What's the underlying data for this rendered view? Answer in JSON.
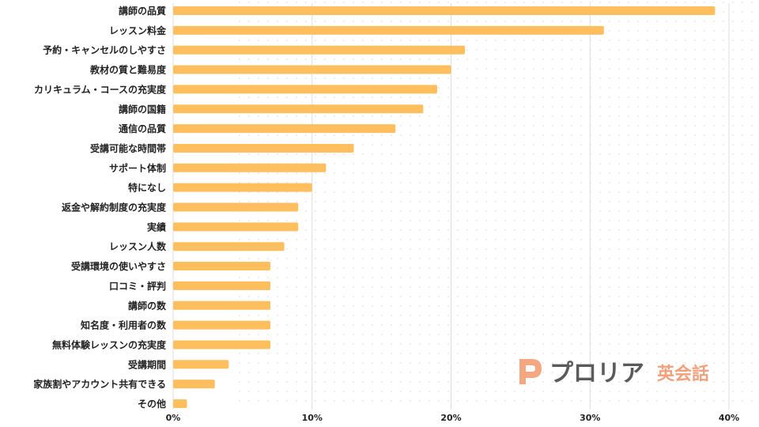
{
  "chart_data": {
    "type": "bar",
    "orientation": "horizontal",
    "categories": [
      "講師の品質",
      "レッスン料金",
      "予約・キャンセルのしやすさ",
      "教材の質と難易度",
      "カリキュラム・コースの充実度",
      "講師の国籍",
      "通信の品質",
      "受講可能な時間帯",
      "サポート体制",
      "特になし",
      "返金や解約制度の充実度",
      "実績",
      "レッスン人数",
      "受講環境の使いやすさ",
      "口コミ・評判",
      "講師の数",
      "知名度・利用者の数",
      "無料体験レッスンの充実度",
      "受講期間",
      "家族割やアカウント共有できる",
      "その他"
    ],
    "values": [
      39,
      31,
      21,
      20,
      19,
      18,
      16,
      13,
      11,
      10,
      9,
      9,
      8,
      7,
      7,
      7,
      7,
      7,
      4,
      3,
      1
    ],
    "xlim": [
      0,
      40
    ],
    "x_ticks": [
      0,
      10,
      20,
      30,
      40
    ],
    "x_tick_labels": [
      "0%",
      "10%",
      "20%",
      "30%",
      "40%"
    ],
    "grid": "vertical",
    "bar_color": "#ffbf5f",
    "title": "",
    "xlabel": "",
    "ylabel": ""
  },
  "logo": {
    "name": "プロリア",
    "suffix": "英会話",
    "mark_color": "#f4a882",
    "suffix_color": "#f0a07a",
    "name_color": "#5a5a5a"
  }
}
